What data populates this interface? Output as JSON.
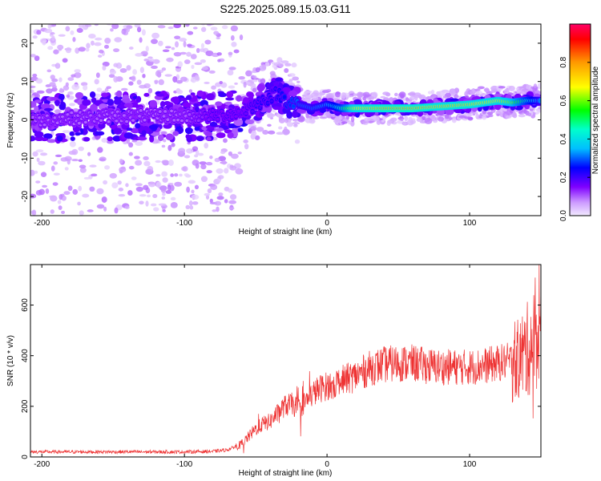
{
  "title": "S225.2025.089.15.03.G11",
  "chart_data": [
    {
      "type": "heatmap",
      "xlabel": "Height of straight line (km)",
      "ylabel": "Frequency (Hz)",
      "xlim": [
        -208,
        150
      ],
      "ylim": [
        -25,
        25
      ],
      "xticks": [
        -200,
        -100,
        0,
        100
      ],
      "yticks": [
        -20,
        -10,
        0,
        10,
        20
      ],
      "colorbar": {
        "label": "Normalized spectral amplitude",
        "ticks": [
          0.0,
          0.2,
          0.4,
          0.6,
          0.8
        ],
        "range": [
          0,
          1
        ]
      },
      "peak_frequency_track": {
        "x": [
          -200,
          -150,
          -100,
          -80,
          -60,
          -45,
          -35,
          -28,
          -20,
          -10,
          0,
          10,
          20,
          40,
          60,
          80,
          100,
          110,
          120,
          130,
          140,
          150
        ],
        "y": [
          0,
          1,
          1,
          1,
          2,
          5,
          7,
          5,
          4,
          3,
          4,
          3,
          3,
          3,
          3,
          3.5,
          4,
          4.5,
          5,
          4.5,
          5,
          5
        ],
        "amplitude": [
          0.1,
          0.1,
          0.1,
          0.15,
          0.15,
          0.2,
          0.2,
          0.25,
          0.3,
          0.3,
          0.35,
          0.5,
          0.8,
          0.9,
          0.9,
          0.85,
          0.85,
          0.8,
          0.8,
          0.7,
          0.5,
          0.3
        ]
      }
    },
    {
      "type": "line",
      "xlabel": "Height of straight line (km)",
      "ylabel": "SNR (10 * v/v)",
      "xlim": [
        -208,
        150
      ],
      "ylim": [
        0,
        760
      ],
      "xticks": [
        -200,
        -100,
        0,
        100
      ],
      "yticks": [
        0,
        200,
        400,
        600
      ],
      "series_color": "#ee3333",
      "series": [
        {
          "x": [
            -208,
            -180,
            -150,
            -120,
            -100,
            -80,
            -70,
            -60,
            -55,
            -50,
            -45,
            -40,
            -35,
            -30,
            -25,
            -20,
            -15,
            -10,
            -5,
            0,
            10,
            20,
            30,
            40,
            50,
            60,
            70,
            80,
            90,
            100,
            110,
            120,
            130,
            135,
            140,
            145,
            150
          ],
          "y": [
            20,
            20,
            20,
            20,
            20,
            22,
            28,
            50,
            80,
            110,
            130,
            140,
            170,
            200,
            210,
            190,
            220,
            250,
            270,
            280,
            300,
            320,
            350,
            365,
            370,
            370,
            360,
            355,
            355,
            355,
            360,
            370,
            380,
            390,
            420,
            460,
            500
          ]
        }
      ]
    }
  ]
}
